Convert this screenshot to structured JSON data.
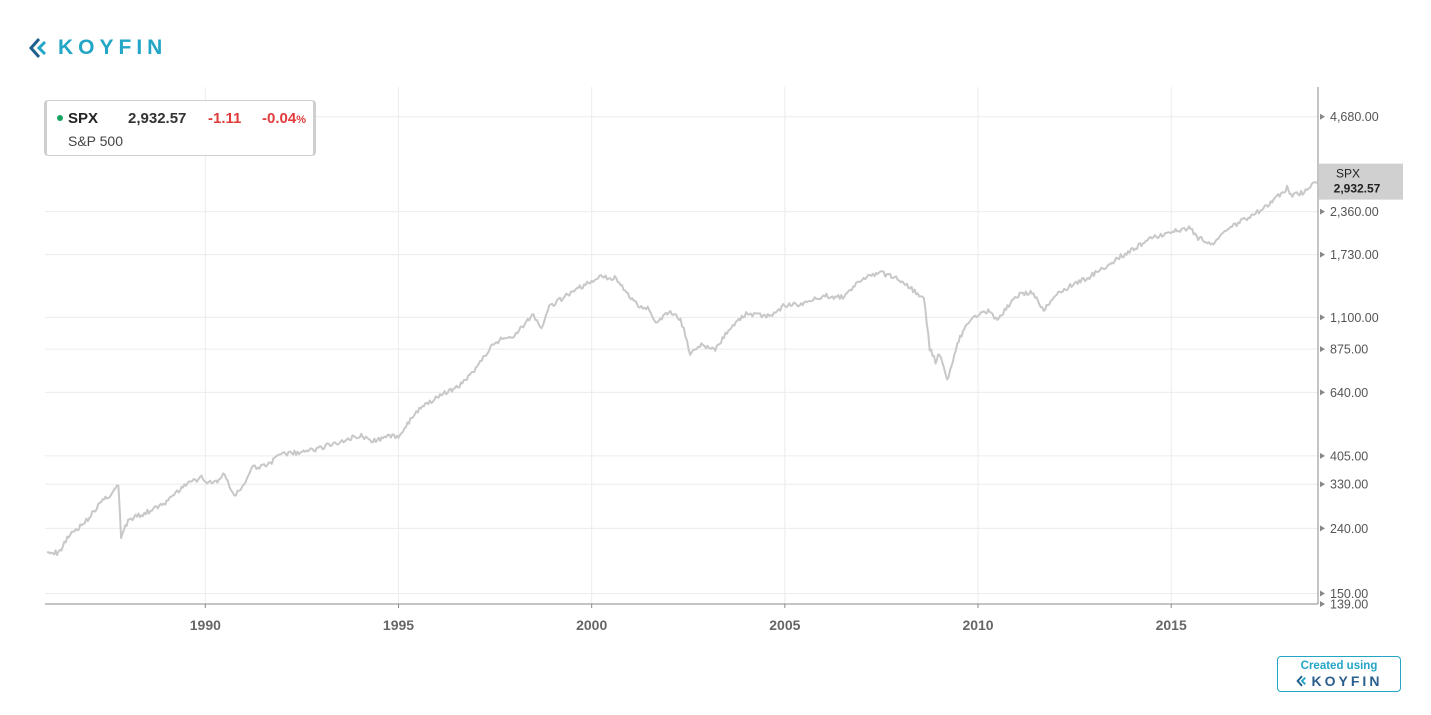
{
  "brand": {
    "name": "KOYFIN",
    "color": "#23a6c6",
    "icon": "koyfin-logo-icon"
  },
  "legend": {
    "ticker": "SPX",
    "price": "2,932.57",
    "change": "-1.11",
    "change_pct": "-0.04",
    "pct_sign": "%",
    "name": "S&P 500",
    "status_color": "#1aa260",
    "negative_color": "#e03c3c"
  },
  "badge": {
    "top": "Created using",
    "brand": "KOYFIN"
  },
  "chart_data": {
    "type": "line",
    "y_scale": "log",
    "grid": true,
    "series": [
      {
        "name": "SPX",
        "color": "#c8c8c8",
        "x": [
          1985.9,
          1986.2,
          1986.5,
          1986.8,
          1987.0,
          1987.3,
          1987.6,
          1987.75,
          1987.82,
          1988.0,
          1988.5,
          1989.0,
          1989.5,
          1989.9,
          1990.2,
          1990.5,
          1990.75,
          1991.0,
          1991.2,
          1991.6,
          1992.0,
          1992.5,
          1993.0,
          1993.5,
          1994.0,
          1994.3,
          1994.6,
          1995.0,
          1995.5,
          1996.0,
          1996.5,
          1997.0,
          1997.5,
          1997.8,
          1998.0,
          1998.5,
          1998.7,
          1998.9,
          1999.5,
          2000.0,
          2000.2,
          2000.6,
          2000.9,
          2001.2,
          2001.45,
          2001.7,
          2002.0,
          2002.3,
          2002.55,
          2002.8,
          2003.2,
          2003.5,
          2004.0,
          2004.6,
          2005.0,
          2005.5,
          2006.0,
          2006.5,
          2007.0,
          2007.4,
          2007.8,
          2008.2,
          2008.6,
          2008.75,
          2008.9,
          2009.0,
          2009.2,
          2009.5,
          2009.8,
          2010.0,
          2010.3,
          2010.5,
          2010.8,
          2011.0,
          2011.4,
          2011.7,
          2012.0,
          2012.5,
          2013.0,
          2013.5,
          2014.0,
          2014.5,
          2015.0,
          2015.5,
          2015.7,
          2016.1,
          2016.5,
          2017.0,
          2017.5,
          2018.0,
          2018.1,
          2018.4,
          2018.8
        ],
        "y": [
          205,
          200,
          232,
          245,
          260,
          290,
          310,
          330,
          225,
          255,
          270,
          290,
          330,
          345,
          330,
          355,
          300,
          330,
          370,
          380,
          410,
          415,
          430,
          450,
          470,
          450,
          460,
          470,
          560,
          620,
          660,
          760,
          920,
          950,
          970,
          1120,
          1000,
          1180,
          1330,
          1420,
          1480,
          1460,
          1320,
          1200,
          1180,
          1050,
          1150,
          1090,
          850,
          900,
          870,
          990,
          1130,
          1110,
          1200,
          1210,
          1290,
          1270,
          1450,
          1520,
          1480,
          1380,
          1250,
          880,
          800,
          850,
          700,
          930,
          1080,
          1120,
          1150,
          1080,
          1200,
          1290,
          1320,
          1150,
          1300,
          1400,
          1500,
          1650,
          1800,
          1950,
          2050,
          2100,
          1950,
          1870,
          2090,
          2270,
          2450,
          2800,
          2650,
          2700,
          2930
        ]
      }
    ],
    "x_ticks": [
      1990,
      1995,
      2000,
      2005,
      2010,
      2015
    ],
    "x_tick_labels": [
      "1990",
      "1995",
      "2000",
      "2005",
      "2010",
      "2015"
    ],
    "y_ticks": [
      139,
      150,
      240,
      330,
      405,
      640,
      875,
      1100,
      1730,
      2360,
      4680
    ],
    "y_tick_labels": [
      "139.00",
      "150.00",
      "240.00",
      "330.00",
      "405.00",
      "640.00",
      "875.00",
      "1,100.00",
      "1,730.00",
      "2,360.00",
      "4,680.00"
    ],
    "xlim": [
      1985.85,
      2018.8
    ],
    "ylim": [
      139,
      5800
    ],
    "last_label": {
      "ticker": "SPX",
      "value": "2,932.57"
    }
  }
}
